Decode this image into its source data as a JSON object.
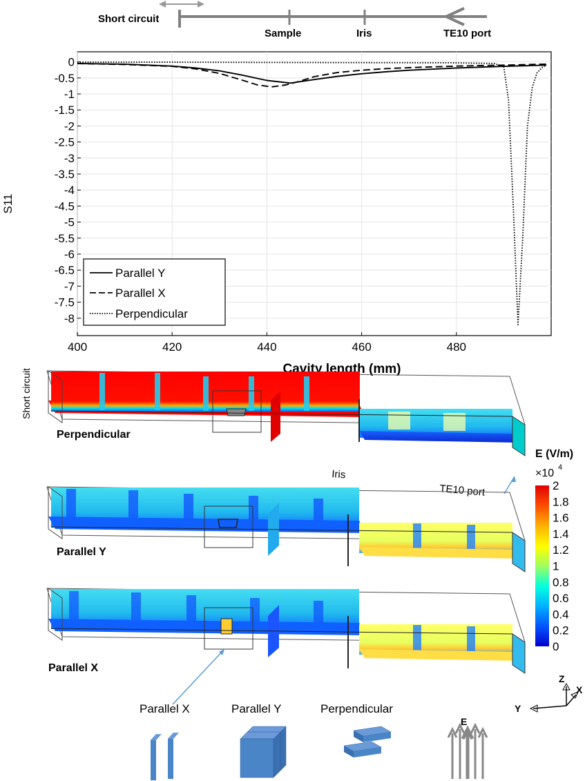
{
  "schematic": {
    "short_circuit": "Short circuit",
    "sample": "Sample",
    "iris": "Iris",
    "port": "TE10 port"
  },
  "chart_data": {
    "type": "line",
    "xlabel": "Cavity length (mm)",
    "ylabel": "S11",
    "xlim": [
      400,
      500
    ],
    "ylim": [
      -8.3,
      0.2
    ],
    "x_ticks": [
      400,
      420,
      440,
      460,
      480
    ],
    "y_ticks": [
      0,
      -0.5,
      -1,
      -1.5,
      -2,
      -2.5,
      -3,
      -3.5,
      -4,
      -4.5,
      -5,
      -5.5,
      -6,
      -6.5,
      -7,
      -7.5,
      -8
    ],
    "grid": true,
    "legend_position": "bottom-left",
    "series": [
      {
        "name": "Parallel Y",
        "style": "solid",
        "x": [
          400,
          410,
          420,
          425,
          430,
          435,
          440,
          445,
          450,
          455,
          460,
          465,
          470,
          480,
          490,
          499
        ],
        "y": [
          -0.05,
          -0.07,
          -0.13,
          -0.19,
          -0.28,
          -0.42,
          -0.58,
          -0.66,
          -0.55,
          -0.45,
          -0.37,
          -0.31,
          -0.26,
          -0.19,
          -0.14,
          -0.1
        ]
      },
      {
        "name": "Parallel X",
        "style": "dashed",
        "x": [
          400,
          410,
          420,
          425,
          430,
          435,
          438,
          441,
          444,
          447,
          450,
          455,
          460,
          465,
          470,
          480,
          490,
          499
        ],
        "y": [
          -0.05,
          -0.08,
          -0.14,
          -0.22,
          -0.36,
          -0.58,
          -0.72,
          -0.78,
          -0.72,
          -0.6,
          -0.46,
          -0.33,
          -0.26,
          -0.21,
          -0.18,
          -0.13,
          -0.1,
          -0.07
        ]
      },
      {
        "name": "Perpendicular",
        "style": "dotted",
        "x": [
          400,
          420,
          450,
          480,
          488,
          490,
          491,
          492,
          493,
          494,
          495,
          496,
          497,
          498,
          499
        ],
        "y": [
          -0.01,
          -0.01,
          -0.02,
          -0.03,
          -0.05,
          -0.15,
          -1.2,
          -4.5,
          -8.2,
          -5.5,
          -2.0,
          -0.8,
          -0.35,
          -0.18,
          -0.1
        ]
      }
    ]
  },
  "fields": {
    "left_label": "Short circuit",
    "panels": [
      {
        "label": "Perpendicular"
      },
      {
        "label": "Parallel Y"
      },
      {
        "label": "Parallel X"
      }
    ],
    "iris_label": "Iris",
    "port_label": "TE10 port",
    "colorbar": {
      "title": "E (V/m)",
      "scale": "×10",
      "exponent": "4",
      "ticks": [
        "2",
        "1.8",
        "1.6",
        "1.4",
        "1.2",
        "1",
        "0.8",
        "0.6",
        "0.4",
        "0.2",
        "0"
      ],
      "colors": [
        "#0000cc",
        "#0050ff",
        "#00b0ff",
        "#00ffe0",
        "#a0ff60",
        "#ffff00",
        "#ffb000",
        "#ff5000",
        "#e00000"
      ]
    }
  },
  "axes_glyph": {
    "z": "Z",
    "x": "X",
    "y": "Y"
  },
  "orientations": {
    "items": [
      "Parallel X",
      "Parallel Y",
      "Perpendicular"
    ],
    "e_label": "E"
  },
  "colors": {
    "red": "#ff0000",
    "cyan": "#33ccee",
    "yellow": "#ffee44",
    "block": "#4a85c8",
    "arrow_gray": "#888888",
    "annot_blue": "#5b9bd5"
  }
}
